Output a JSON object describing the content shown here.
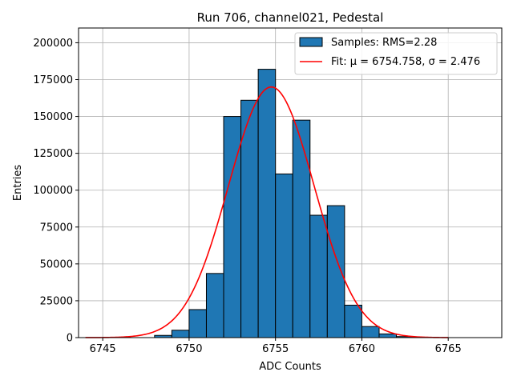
{
  "chart_data": {
    "type": "bar",
    "title": "Run 706, channel021, Pedestal",
    "xlabel": "ADC Counts",
    "ylabel": "Entries",
    "xlim": [
      6743.6,
      6768.1
    ],
    "ylim": [
      0,
      210000
    ],
    "xticks": [
      6745,
      6750,
      6755,
      6760,
      6765
    ],
    "yticks": [
      0,
      25000,
      50000,
      75000,
      100000,
      125000,
      150000,
      175000,
      200000
    ],
    "grid": true,
    "legend_position": "top-right",
    "bin_width": 1,
    "bins": [
      {
        "x": 6748,
        "value": 1500
      },
      {
        "x": 6749,
        "value": 5000
      },
      {
        "x": 6750,
        "value": 19000
      },
      {
        "x": 6751,
        "value": 43500
      },
      {
        "x": 6752,
        "value": 150000
      },
      {
        "x": 6753,
        "value": 161000
      },
      {
        "x": 6754,
        "value": 182000
      },
      {
        "x": 6755,
        "value": 111000
      },
      {
        "x": 6756,
        "value": 147500
      },
      {
        "x": 6757,
        "value": 83000
      },
      {
        "x": 6758,
        "value": 89500
      },
      {
        "x": 6759,
        "value": 22000
      },
      {
        "x": 6760,
        "value": 7500
      },
      {
        "x": 6761,
        "value": 2500
      },
      {
        "x": 6762,
        "value": 700
      }
    ],
    "series": [
      {
        "name": "Samples: RMS=2.28",
        "kind": "histogram",
        "color": "#1f77b4",
        "edgecolor": "#000000"
      },
      {
        "name": "Fit: μ = 6754.758, σ = 2.476",
        "kind": "line",
        "color": "#ff0000",
        "mu": 6754.758,
        "sigma": 2.476,
        "amplitude": 170000,
        "x_range": [
          6744,
          6765
        ]
      }
    ]
  }
}
